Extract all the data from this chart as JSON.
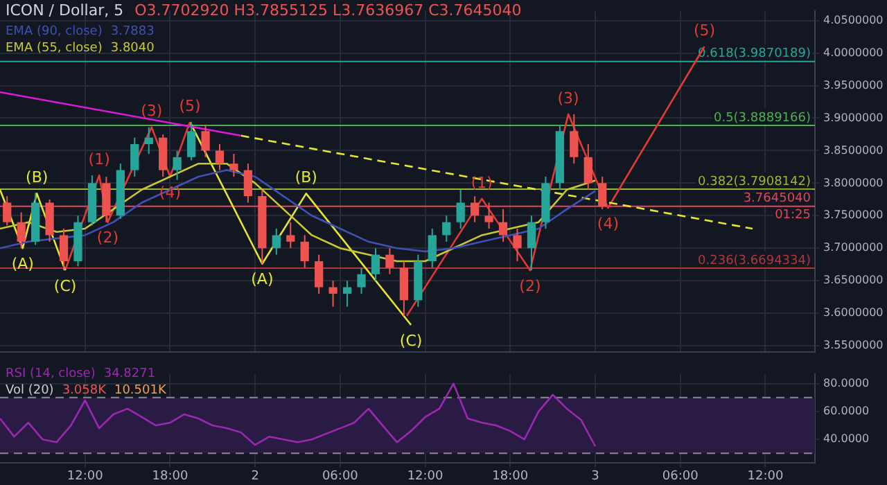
{
  "chart_data": [
    {
      "type": "candlestick",
      "title": "ICON / Dollar, 5",
      "subtitle": "O3.7702920 H3.7855125 L3.7636967 C3.7645040",
      "x": [
        "--01-01T06:30",
        "--01-01T07:30",
        "--01-01T08:30",
        "--01-01T09:30",
        "--01-01T10:30",
        "--01-01T11:30",
        "--01-01T12:30",
        "--01-01T13:30",
        "--01-01T14:30",
        "--01-01T15:30",
        "--01-01T16:30",
        "--01-01T17:30",
        "--01-01T18:30",
        "--01-01T19:30",
        "--01-01T20:30",
        "--01-01T21:30",
        "--01-01T22:30",
        "--01-01T23:30",
        "--01-02T00:30",
        "--01-02T01:30",
        "--01-02T02:30",
        "--01-02T03:30",
        "--01-02T04:30",
        "--01-02T05:30",
        "--01-02T06:30",
        "--01-02T07:30",
        "--01-02T08:30",
        "--01-02T09:30",
        "--01-02T10:30",
        "--01-02T11:30",
        "--01-02T12:30",
        "--01-02T13:30",
        "--01-02T14:30",
        "--01-02T15:30",
        "--01-02T16:30",
        "--01-02T17:30",
        "--01-02T18:30",
        "--01-02T19:30",
        "--01-02T20:30",
        "--01-02T21:30",
        "--01-02T22:30",
        "--01-02T23:30",
        "--01-03T00:30"
      ],
      "ohlc": [
        [
          3.77,
          3.78,
          3.735,
          3.74
        ],
        [
          3.74,
          3.755,
          3.7,
          3.71
        ],
        [
          3.71,
          3.785,
          3.705,
          3.77
        ],
        [
          3.77,
          3.775,
          3.71,
          3.72
        ],
        [
          3.72,
          3.73,
          3.666,
          3.68
        ],
        [
          3.68,
          3.75,
          3.672,
          3.74
        ],
        [
          3.74,
          3.812,
          3.735,
          3.8
        ],
        [
          3.8,
          3.81,
          3.74,
          3.75
        ],
        [
          3.75,
          3.83,
          3.745,
          3.82
        ],
        [
          3.82,
          3.87,
          3.81,
          3.86
        ],
        [
          3.86,
          3.886,
          3.845,
          3.87
        ],
        [
          3.87,
          3.875,
          3.81,
          3.82
        ],
        [
          3.82,
          3.85,
          3.805,
          3.84
        ],
        [
          3.84,
          3.894,
          3.835,
          3.88
        ],
        [
          3.88,
          3.89,
          3.84,
          3.85
        ],
        [
          3.85,
          3.86,
          3.82,
          3.83
        ],
        [
          3.83,
          3.845,
          3.81,
          3.82
        ],
        [
          3.82,
          3.83,
          3.77,
          3.78
        ],
        [
          3.78,
          3.79,
          3.676,
          3.7
        ],
        [
          3.7,
          3.73,
          3.69,
          3.72
        ],
        [
          3.72,
          3.74,
          3.7,
          3.71
        ],
        [
          3.71,
          3.72,
          3.67,
          3.68
        ],
        [
          3.68,
          3.69,
          3.63,
          3.64
        ],
        [
          3.64,
          3.65,
          3.61,
          3.63
        ],
        [
          3.63,
          3.65,
          3.61,
          3.64
        ],
        [
          3.64,
          3.67,
          3.63,
          3.66
        ],
        [
          3.66,
          3.7,
          3.65,
          3.69
        ],
        [
          3.69,
          3.7,
          3.66,
          3.67
        ],
        [
          3.67,
          3.68,
          3.596,
          3.62
        ],
        [
          3.62,
          3.69,
          3.61,
          3.68
        ],
        [
          3.68,
          3.73,
          3.67,
          3.72
        ],
        [
          3.72,
          3.75,
          3.71,
          3.74
        ],
        [
          3.74,
          3.79,
          3.73,
          3.77
        ],
        [
          3.77,
          3.78,
          3.74,
          3.75
        ],
        [
          3.75,
          3.77,
          3.73,
          3.74
        ],
        [
          3.74,
          3.76,
          3.71,
          3.72
        ],
        [
          3.72,
          3.73,
          3.68,
          3.7
        ],
        [
          3.7,
          3.75,
          3.666,
          3.74
        ],
        [
          3.74,
          3.81,
          3.73,
          3.8
        ],
        [
          3.8,
          3.89,
          3.79,
          3.88
        ],
        [
          3.88,
          3.906,
          3.83,
          3.84
        ],
        [
          3.84,
          3.86,
          3.79,
          3.8
        ],
        [
          3.8,
          3.81,
          3.76,
          3.7645
        ]
      ],
      "series": [
        {
          "type": "line",
          "name": "EMA (90, close)",
          "color": "#3f51b5",
          "x": [
            "--01-01T06:00",
            "--01-01T08:00",
            "--01-01T10:00",
            "--01-01T12:00",
            "--01-01T14:00",
            "--01-01T16:00",
            "--01-01T18:00",
            "--01-01T20:00",
            "--01-01T22:00",
            "--01-02T00:00",
            "--01-02T02:00",
            "--01-02T04:00",
            "--01-02T06:00",
            "--01-02T08:00",
            "--01-02T10:00",
            "--01-02T12:00",
            "--01-02T14:00",
            "--01-02T16:00",
            "--01-02T18:00",
            "--01-02T20:00",
            "--01-02T22:00",
            "--01-03T00:00"
          ],
          "values": [
            3.7,
            3.71,
            3.715,
            3.72,
            3.74,
            3.77,
            3.79,
            3.81,
            3.82,
            3.81,
            3.78,
            3.75,
            3.73,
            3.71,
            3.7,
            3.695,
            3.7,
            3.71,
            3.72,
            3.73,
            3.76,
            3.788
          ]
        },
        {
          "type": "line",
          "name": "EMA (55, close)",
          "color": "#c8c832",
          "x": [
            "--01-01T06:00",
            "--01-01T08:00",
            "--01-01T10:00",
            "--01-01T12:00",
            "--01-01T14:00",
            "--01-01T16:00",
            "--01-01T18:00",
            "--01-01T20:00",
            "--01-01T22:00",
            "--01-02T00:00",
            "--01-02T02:00",
            "--01-02T04:00",
            "--01-02T06:00",
            "--01-02T08:00",
            "--01-02T10:00",
            "--01-02T12:00",
            "--01-02T14:00",
            "--01-02T16:00",
            "--01-02T18:00",
            "--01-02T20:00",
            "--01-02T22:00",
            "--01-03T00:00"
          ],
          "values": [
            3.73,
            3.74,
            3.725,
            3.73,
            3.76,
            3.79,
            3.81,
            3.83,
            3.83,
            3.8,
            3.76,
            3.72,
            3.7,
            3.69,
            3.68,
            3.68,
            3.7,
            3.72,
            3.73,
            3.74,
            3.79,
            3.804
          ]
        },
        {
          "type": "line",
          "color": "#d81bd8",
          "x": [
            "--01-01T06:00",
            "--01-01T23:00"
          ],
          "values": [
            3.94,
            3.873
          ]
        },
        {
          "type": "line",
          "color": "#e6e632",
          "line_style": "dashed",
          "x": [
            "--01-01T23:00",
            "--01-03T11:06"
          ],
          "values": [
            3.873,
            3.73
          ]
        },
        {
          "type": "line",
          "color": "#e6e632",
          "x": [
            "--01-01T06:00",
            "--01-01T07:36",
            "--01-01T08:36",
            "--01-01T10:36"
          ],
          "values": [
            3.79,
            3.7,
            3.784,
            3.666
          ]
        },
        {
          "type": "line",
          "color": "#e53935",
          "x": [
            "--01-01T10:36",
            "--01-01T13:00",
            "--01-01T13:36",
            "--01-01T16:42",
            "--01-01T18:00",
            "--01-01T19:24"
          ],
          "values": [
            3.666,
            3.812,
            3.74,
            3.886,
            3.81,
            3.894
          ]
        },
        {
          "type": "line",
          "color": "#e6e632",
          "x": [
            "--01-01T19:24",
            "--01-02T00:30",
            "--01-02T03:36",
            "--01-02T11:00"
          ],
          "values": [
            3.894,
            3.676,
            3.784,
            3.582
          ]
        },
        {
          "type": "line",
          "color": "#e53935",
          "x": [
            "--01-02T10:42",
            "--01-02T16:00",
            "--01-02T19:24",
            "--01-02T22:06",
            "--01-03T00:54",
            "--01-03T07:42"
          ],
          "values": [
            3.596,
            3.776,
            3.666,
            3.906,
            3.762,
            4.01
          ]
        }
      ],
      "ref_lines": [
        {
          "axis": "y",
          "value": 3.9870189,
          "label": "0.618(3.9870189)",
          "color": "#26a69a"
        },
        {
          "axis": "y",
          "value": 3.8889166,
          "label": "0.5(3.8889166)",
          "color": "#4caf50"
        },
        {
          "axis": "y",
          "value": 3.7908142,
          "label": "0.382(3.7908142)",
          "color": "#9ab832"
        },
        {
          "axis": "y",
          "value": 3.6694334,
          "label": "0.236(3.6694334)",
          "color": "#b2373a"
        },
        {
          "axis": "y",
          "value": 3.764504,
          "label": "3.7645040",
          "color": "#e0475a"
        }
      ],
      "annotations": [
        "3.7883",
        "3.8040",
        "01:25",
        {
          "text": "(A)",
          "x": "--01-01T07:36",
          "y": 3.7
        },
        {
          "text": "(B)",
          "x": "--01-01T08:36",
          "y": 3.784
        },
        {
          "text": "(C)",
          "x": "--01-01T10:36",
          "y": 3.666
        },
        {
          "text": "(1)",
          "x": "--01-01T13:00",
          "y": 3.812
        },
        {
          "text": "(2)",
          "x": "--01-01T13:36",
          "y": 3.74
        },
        {
          "text": "(3)",
          "x": "--01-01T16:42",
          "y": 3.886
        },
        {
          "text": "(4)",
          "x": "--01-01T18:00",
          "y": 3.81
        },
        {
          "text": "(5)",
          "x": "--01-01T19:24",
          "y": 3.894
        },
        {
          "text": "(A)",
          "x": "--01-02T00:30",
          "y": 3.676
        },
        {
          "text": "(B)",
          "x": "--01-02T03:36",
          "y": 3.784
        },
        {
          "text": "(C)",
          "x": "--01-02T11:00",
          "y": 3.582
        },
        {
          "text": "(1)",
          "x": "--01-02T16:00",
          "y": 3.776
        },
        {
          "text": "(2)",
          "x": "--01-02T19:24",
          "y": 3.666
        },
        {
          "text": "(3)",
          "x": "--01-02T22:06",
          "y": 3.906
        },
        {
          "text": "(4)",
          "x": "--01-03T00:54",
          "y": 3.762
        },
        {
          "text": "(5)",
          "x": "--01-03T07:42",
          "y": 4.01
        }
      ],
      "xlim": [
        "--01-01T06:00",
        "--01-03T15:30"
      ],
      "xticks": [
        {
          "value": "--01-01T12:00",
          "label": null
        },
        {
          "value": "--01-01T18:00",
          "label": null
        },
        {
          "value": "--01-02",
          "label": null
        },
        {
          "value": "--01-02T06:00",
          "label": null
        },
        {
          "value": "--01-02T12:00",
          "label": null
        },
        {
          "value": "--01-02T18:00",
          "label": null
        },
        {
          "value": "--01-03",
          "label": null
        },
        {
          "value": "--01-03T06:00",
          "label": null
        },
        {
          "value": "--01-03T12:00",
          "label": null
        }
      ],
      "ylim": [
        3.54,
        4.065
      ],
      "yticks": [
        {
          "value": 3.55,
          "label": "3.5500000"
        },
        {
          "value": 3.6,
          "label": "3.6000000"
        },
        {
          "value": 3.65,
          "label": "3.6500000"
        },
        {
          "value": 3.7,
          "label": "3.7000000"
        },
        {
          "value": 3.75,
          "label": "3.7500000"
        },
        {
          "value": 3.8,
          "label": "3.8000000"
        },
        {
          "value": 3.85,
          "label": "3.8500000"
        },
        {
          "value": 3.9,
          "label": "3.9000000"
        },
        {
          "value": 3.95,
          "label": "3.9500000"
        },
        {
          "value": 4.0,
          "label": "4.0000000"
        },
        {
          "value": 4.05,
          "label": "4.0500000"
        }
      ],
      "grid": true,
      "legend": "top left",
      "tick_labels": "y"
    },
    {
      "type": "line",
      "x": [
        "--01-01T06:00",
        "--01-01T07:00",
        "--01-01T08:00",
        "--01-01T09:00",
        "--01-01T10:00",
        "--01-01T11:00",
        "--01-01T12:00",
        "--01-01T13:00",
        "--01-01T14:00",
        "--01-01T15:00",
        "--01-01T16:00",
        "--01-01T17:00",
        "--01-01T18:00",
        "--01-01T19:00",
        "--01-01T20:00",
        "--01-01T21:00",
        "--01-01T22:00",
        "--01-01T23:00",
        "--01-02T00:00",
        "--01-02T01:00",
        "--01-02T02:00",
        "--01-02T03:00",
        "--01-02T04:00",
        "--01-02T05:00",
        "--01-02T06:00",
        "--01-02T07:00",
        "--01-02T08:00",
        "--01-02T09:00",
        "--01-02T10:00",
        "--01-02T11:00",
        "--01-02T12:00",
        "--01-02T13:00",
        "--01-02T14:00",
        "--01-02T15:00",
        "--01-02T16:00",
        "--01-02T17:00",
        "--01-02T18:00",
        "--01-02T19:00",
        "--01-02T20:00",
        "--01-02T21:00",
        "--01-02T22:00",
        "--01-02T23:00",
        "--01-03T00:00"
      ],
      "series": [
        {
          "name": "RSI (14, close)",
          "color": "#9c27b0",
          "values": [
            55,
            42,
            52,
            40,
            38,
            50,
            68,
            48,
            58,
            62,
            56,
            50,
            52,
            58,
            55,
            50,
            48,
            45,
            36,
            42,
            40,
            38,
            40,
            44,
            48,
            52,
            62,
            50,
            38,
            46,
            56,
            62,
            80,
            55,
            52,
            50,
            46,
            40,
            60,
            72,
            62,
            54,
            35
          ]
        }
      ],
      "bands": [
        {
          "axis": "y",
          "from": 30,
          "to": 70,
          "color": "#2a1b45"
        }
      ],
      "ref_lines": [
        {
          "axis": "y",
          "value": 70,
          "color": "#8a8a9a",
          "line_style": "dashed"
        },
        {
          "axis": "y",
          "value": 30,
          "color": "#8a8a9a",
          "line_style": "dashed"
        }
      ],
      "annotations": [
        "34.8271",
        "Vol (20)",
        "3.058K",
        "10.501K"
      ],
      "xlim": [
        "--01-01T06:00",
        "--01-03T15:30"
      ],
      "xticks": [
        {
          "value": "--01-01T12:00",
          "label": "12:00"
        },
        {
          "value": "--01-01T18:00",
          "label": "18:00"
        },
        {
          "value": "--01-02",
          "label": "2"
        },
        {
          "value": "--01-02T06:00",
          "label": "06:00"
        },
        {
          "value": "--01-02T12:00",
          "label": "12:00"
        },
        {
          "value": "--01-02T18:00",
          "label": "18:00"
        },
        {
          "value": "--01-03",
          "label": "3"
        },
        {
          "value": "--01-03T06:00",
          "label": "06:00"
        },
        {
          "value": "--01-03T12:00",
          "label": "12:00"
        }
      ],
      "ylim": [
        23,
        87
      ],
      "yticks": [
        {
          "value": 40,
          "label": "40.0000"
        },
        {
          "value": 60,
          "label": "60.0000"
        },
        {
          "value": 80,
          "label": "80.0000"
        }
      ],
      "grid": true,
      "legend": "top left"
    }
  ]
}
